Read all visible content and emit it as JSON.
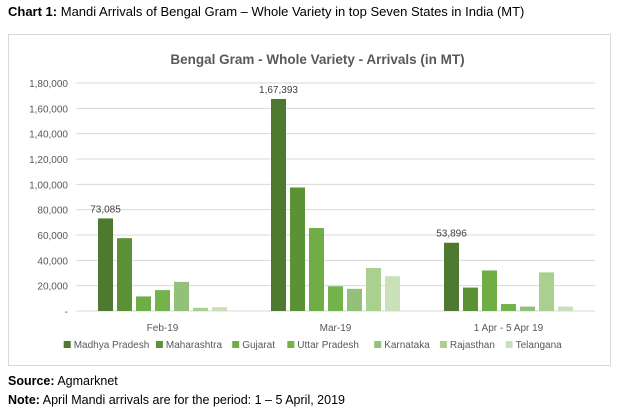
{
  "caption": {
    "prefix": "Chart 1:",
    "text": "Mandi Arrivals of Bengal Gram – Whole Variety in top Seven States in India (MT)"
  },
  "chart_data": {
    "type": "bar",
    "title": "Bengal Gram - Whole Variety - Arrivals (in MT)",
    "categories": [
      "Feb-19",
      "Mar-19",
      "1 Apr - 5 Apr 19"
    ],
    "ylim": [
      0,
      180000
    ],
    "yticks": [
      0,
      20000,
      40000,
      60000,
      80000,
      100000,
      120000,
      140000,
      160000,
      180000
    ],
    "ytick_labels": [
      "-",
      "20,000",
      "40,000",
      "60,000",
      "80,000",
      "1,00,000",
      "1,20,000",
      "1,40,000",
      "1,60,000",
      "1,80,000"
    ],
    "grid": true,
    "legend_position": "bottom",
    "series": [
      {
        "name": "Madhya Pradesh",
        "color": "#4d7a30",
        "values": [
          73085,
          167393,
          53896
        ]
      },
      {
        "name": "Maharashtra",
        "color": "#5b9236",
        "values": [
          57500,
          97500,
          18500
        ]
      },
      {
        "name": "Gujarat",
        "color": "#70ad47",
        "values": [
          11500,
          65500,
          32000
        ]
      },
      {
        "name": "Uttar Pradesh",
        "color": "#74b34c",
        "values": [
          16500,
          19500,
          5500
        ]
      },
      {
        "name": "Karnataka",
        "color": "#93c17a",
        "values": [
          23000,
          17500,
          3500
        ]
      },
      {
        "name": "Rajasthan",
        "color": "#a9d08e",
        "values": [
          2500,
          34000,
          30500
        ]
      },
      {
        "name": "Telangana",
        "color": "#c9e0b8",
        "values": [
          3000,
          27500,
          3500
        ]
      }
    ],
    "data_labels": [
      {
        "series": 0,
        "category": 0,
        "text": "73,085"
      },
      {
        "series": 0,
        "category": 1,
        "text": "1,67,393"
      },
      {
        "series": 0,
        "category": 2,
        "text": "53,896"
      }
    ]
  },
  "footer": {
    "source_prefix": "Source:",
    "source_text": " Agmarknet",
    "note_prefix": "Note:",
    "note_text": " April Mandi arrivals are for the period: 1 – 5 April, 2019"
  }
}
